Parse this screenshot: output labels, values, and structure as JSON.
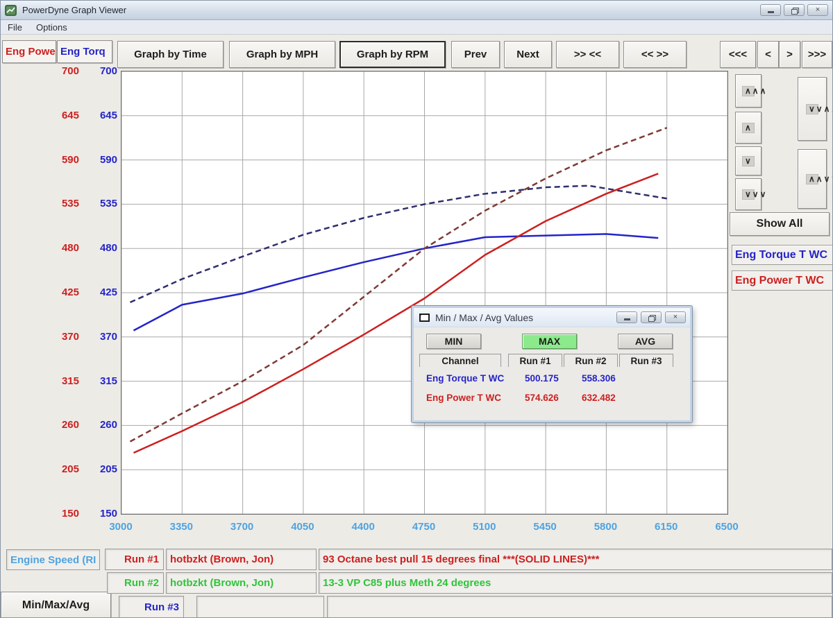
{
  "window": {
    "title": "PowerDyne Graph Viewer"
  },
  "menu": {
    "file": "File",
    "options": "Options"
  },
  "icons": {
    "app-icon": "green chart window",
    "minimize-icon": "dash",
    "restore-icon": "overlapping squares",
    "close-icon": "×",
    "dialog-icon": "window flag",
    "chevron_up": "∧",
    "chevron_up_triple": "∧∧∧",
    "chevron_down": "∨",
    "chevron_down_triple": "∨∨∨",
    "chevron_converge": "∨∨∧∧",
    "chevron_diverge": "∧∧∨∨"
  },
  "toolbar": {
    "tab_power": "Eng Powe",
    "tab_torque": "Eng Torq",
    "graph_by_time": "Graph by Time",
    "graph_by_mph": "Graph by MPH",
    "graph_by_rpm": "Graph by RPM",
    "prev": "Prev",
    "next": "Next",
    "zoom_in": ">> <<",
    "zoom_out": "<< >>",
    "pan_far_left": "<<<",
    "pan_left": "<",
    "pan_right": ">",
    "pan_far_right": ">>>"
  },
  "right_panel": {
    "show_all": "Show All",
    "legend": [
      {
        "label": "Eng Torque T WC",
        "color": "#2424c8"
      },
      {
        "label": "Eng Power T WC",
        "color": "#cc2020"
      }
    ]
  },
  "dialog": {
    "title": "Min / Max / Avg Values",
    "min_button": "MIN",
    "max_button": "MAX",
    "avg_button": "AVG",
    "selected": "MAX",
    "columns": [
      "Channel",
      "Run #1",
      "Run #2",
      "Run #3"
    ],
    "rows": [
      {
        "channel": "Eng Torque T WC",
        "run1": "500.175",
        "run2": "558.306",
        "run3": "",
        "color": "#2424c8"
      },
      {
        "channel": "Eng Power T WC",
        "run1": "574.626",
        "run2": "632.482",
        "run3": "",
        "color": "#cc2020"
      }
    ]
  },
  "bottom": {
    "x_channel": "Engine Speed (RI",
    "minmaxavg_button": "Min/Max/Avg",
    "runs": [
      {
        "label": "Run #1",
        "name": "hotbzkt (Brown, Jon)",
        "comment": "93 Octane best pull 15 degrees final ***(SOLID LINES)***",
        "color": "#cc2020"
      },
      {
        "label": "Run #2",
        "name": "hotbzkt (Brown, Jon)",
        "comment": "13-3 VP C85 plus Meth 24 degrees",
        "color": "#2fc43c"
      },
      {
        "label": "Run #3",
        "name": "",
        "comment": "",
        "color": "#2424c8"
      }
    ]
  },
  "chart_data": {
    "type": "line",
    "title": "",
    "xlabel": "Engine Speed (RPM)",
    "ylabel_left": "Eng Power",
    "ylabel_right": "Eng Torque",
    "xlim": [
      3000,
      6500
    ],
    "ylim": [
      150,
      700
    ],
    "x_ticks": [
      3000,
      3350,
      3700,
      4050,
      4400,
      4750,
      5100,
      5450,
      5800,
      6150,
      6500
    ],
    "y_ticks": [
      150,
      205,
      260,
      315,
      370,
      425,
      480,
      535,
      590,
      645,
      700
    ],
    "grid": true,
    "legend_position": "right",
    "series": [
      {
        "name": "Run #1 Eng Torque T WC",
        "color": "#2424c8",
        "dash": "solid",
        "x": [
          3070,
          3350,
          3700,
          4050,
          4400,
          4750,
          5100,
          5450,
          5800,
          6100
        ],
        "y": [
          378,
          410,
          424,
          444,
          463,
          480,
          494,
          496,
          498,
          493
        ]
      },
      {
        "name": "Run #2 Eng Torque T WC",
        "color": "#2e2e6e",
        "dash": "dashed",
        "x": [
          3050,
          3350,
          3700,
          4050,
          4400,
          4750,
          5100,
          5450,
          5700,
          6150
        ],
        "y": [
          413,
          442,
          470,
          497,
          518,
          535,
          548,
          556,
          558,
          542
        ]
      },
      {
        "name": "Run #1 Eng Power T WC",
        "color": "#cc2020",
        "dash": "solid",
        "x": [
          3070,
          3350,
          3700,
          4050,
          4400,
          4750,
          5100,
          5450,
          5800,
          6100
        ],
        "y": [
          226,
          253,
          289,
          330,
          373,
          418,
          472,
          514,
          548,
          573
        ]
      },
      {
        "name": "Run #2 Eng Power T WC",
        "color": "#7e3a34",
        "dash": "dashed",
        "x": [
          3050,
          3350,
          3700,
          4050,
          4400,
          4750,
          5100,
          5450,
          5800,
          6150
        ],
        "y": [
          240,
          275,
          315,
          360,
          420,
          480,
          527,
          567,
          602,
          630
        ]
      }
    ],
    "max_values": {
      "eng_torque_run1": 500.175,
      "eng_torque_run2": 558.306,
      "eng_power_run1": 574.626,
      "eng_power_run2": 632.482
    }
  }
}
